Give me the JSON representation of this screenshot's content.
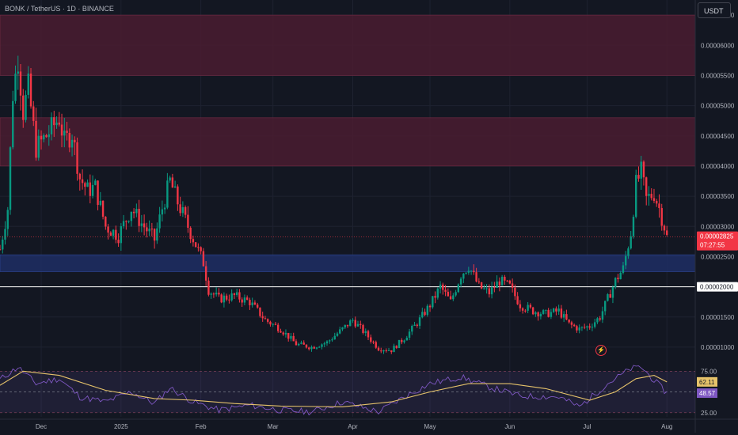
{
  "header": {
    "symbol": "BONK / TetherUS · 1D · BINANCE",
    "currency": "USDT"
  },
  "price_axis": {
    "ticks": [
      "0.00006500",
      "0.00006000",
      "0.00005500",
      "0.00005000",
      "0.00004500",
      "0.00004000",
      "0.00003500",
      "0.00003000",
      "0.00002500",
      "0.00002000",
      "0.00001500",
      "0.00001000"
    ],
    "current_price": "0.00002825",
    "countdown": "07:27:55",
    "line_price": "0.00002000"
  },
  "rsi_axis": {
    "ticks": [
      "75.00",
      "25.00"
    ],
    "ma_value": "62.11",
    "rsi_value": "48.57"
  },
  "time_axis": {
    "labels": [
      "Dec",
      "2025",
      "Feb",
      "Mar",
      "Apr",
      "May",
      "Jun",
      "Jul",
      "Aug"
    ]
  },
  "colors": {
    "background": "#131722",
    "up": "#089981",
    "down": "#f23645",
    "zone_red": "#4a1c30",
    "zone_blue": "#1e2e64",
    "rsi_line": "#7e57c2",
    "rsi_ma": "#e6c36a"
  },
  "icons": {
    "alert": "flash-icon"
  },
  "chart_data": {
    "type": "candlestick",
    "symbol": "BONK / TetherUS",
    "interval": "1D",
    "exchange": "BINANCE",
    "y_range": [
      7.5e-06,
      6.75e-05
    ],
    "x_range": [
      "2024-11-15",
      "2025-08-12"
    ],
    "zones": [
      {
        "from": 5.5e-05,
        "to": 6.5e-05,
        "color": "red"
      },
      {
        "from": 4e-05,
        "to": 4.8e-05,
        "color": "red"
      },
      {
        "from": 2.25e-05,
        "to": 2.53e-05,
        "color": "blue"
      }
    ],
    "horizontal_lines": [
      2e-05
    ],
    "close_path": [
      [
        "2024-11-15",
        2.62e-05
      ],
      [
        "2024-11-18",
        3.3e-05
      ],
      [
        "2024-11-20",
        5.2e-05
      ],
      [
        "2024-11-22",
        5.8e-05
      ],
      [
        "2024-11-24",
        4.9e-05
      ],
      [
        "2024-11-26",
        5.3e-05
      ],
      [
        "2024-11-29",
        4.3e-05
      ],
      [
        "2024-12-03",
        4.5e-05
      ],
      [
        "2024-12-08",
        4.8e-05
      ],
      [
        "2024-12-10",
        4.4e-05
      ],
      [
        "2024-12-13",
        4.55e-05
      ],
      [
        "2024-12-16",
        3.8e-05
      ],
      [
        "2024-12-19",
        3.6e-05
      ],
      [
        "2024-12-22",
        3.65e-05
      ],
      [
        "2024-12-26",
        3e-05
      ],
      [
        "2024-12-31",
        2.85e-05
      ],
      [
        "2025-01-05",
        3.3e-05
      ],
      [
        "2025-01-09",
        3.05e-05
      ],
      [
        "2025-01-14",
        2.78e-05
      ],
      [
        "2025-01-17",
        3.3e-05
      ],
      [
        "2025-01-20",
        3.75e-05
      ],
      [
        "2025-01-23",
        3.4e-05
      ],
      [
        "2025-01-26",
        3.1e-05
      ],
      [
        "2025-01-29",
        2.8e-05
      ],
      [
        "2025-02-02",
        2.4e-05
      ],
      [
        "2025-02-04",
        1.95e-05
      ],
      [
        "2025-02-08",
        1.8e-05
      ],
      [
        "2025-02-14",
        1.85e-05
      ],
      [
        "2025-02-20",
        1.75e-05
      ],
      [
        "2025-02-26",
        1.45e-05
      ],
      [
        "2025-03-04",
        1.3e-05
      ],
      [
        "2025-03-10",
        1.05e-05
      ],
      [
        "2025-03-16",
        1e-05
      ],
      [
        "2025-03-22",
        1.08e-05
      ],
      [
        "2025-03-28",
        1.3e-05
      ],
      [
        "2025-04-01",
        1.45e-05
      ],
      [
        "2025-04-06",
        1.22e-05
      ],
      [
        "2025-04-11",
        9.8e-06
      ],
      [
        "2025-04-16",
        9.5e-06
      ],
      [
        "2025-04-21",
        1.15e-05
      ],
      [
        "2025-04-26",
        1.4e-05
      ],
      [
        "2025-05-01",
        1.7e-05
      ],
      [
        "2025-05-05",
        2e-05
      ],
      [
        "2025-05-09",
        1.75e-05
      ],
      [
        "2025-05-13",
        2.2e-05
      ],
      [
        "2025-05-16",
        2.35e-05
      ],
      [
        "2025-05-20",
        2e-05
      ],
      [
        "2025-05-24",
        1.9e-05
      ],
      [
        "2025-05-28",
        2.1e-05
      ],
      [
        "2025-06-01",
        2e-05
      ],
      [
        "2025-06-05",
        1.7e-05
      ],
      [
        "2025-06-10",
        1.6e-05
      ],
      [
        "2025-06-15",
        1.55e-05
      ],
      [
        "2025-06-20",
        1.6e-05
      ],
      [
        "2025-06-24",
        1.38e-05
      ],
      [
        "2025-06-28",
        1.3e-05
      ],
      [
        "2025-07-02",
        1.35e-05
      ],
      [
        "2025-07-06",
        1.5e-05
      ],
      [
        "2025-07-09",
        1.8e-05
      ],
      [
        "2025-07-12",
        2.1e-05
      ],
      [
        "2025-07-15",
        2.3e-05
      ],
      [
        "2025-07-18",
        2.9e-05
      ],
      [
        "2025-07-20",
        3.7e-05
      ],
      [
        "2025-07-22",
        3.9e-05
      ],
      [
        "2025-07-24",
        3.45e-05
      ],
      [
        "2025-07-27",
        3.55e-05
      ],
      [
        "2025-07-29",
        3.3e-05
      ],
      [
        "2025-07-31",
        3e-05
      ],
      [
        "2025-08-01",
        2.82e-05
      ]
    ],
    "rsi": {
      "levels": [
        75,
        50,
        25
      ],
      "y_range": [
        20,
        82
      ],
      "ma_path": [
        [
          "2024-11-15",
          58
        ],
        [
          "2024-11-24",
          75
        ],
        [
          "2024-12-08",
          70
        ],
        [
          "2024-12-26",
          52
        ],
        [
          "2025-01-14",
          42
        ],
        [
          "2025-01-29",
          40
        ],
        [
          "2025-02-14",
          36
        ],
        [
          "2025-03-04",
          33
        ],
        [
          "2025-03-28",
          32
        ],
        [
          "2025-04-16",
          38
        ],
        [
          "2025-05-01",
          50
        ],
        [
          "2025-05-16",
          60
        ],
        [
          "2025-06-01",
          60
        ],
        [
          "2025-06-15",
          54
        ],
        [
          "2025-07-02",
          40
        ],
        [
          "2025-07-12",
          50
        ],
        [
          "2025-07-20",
          66
        ],
        [
          "2025-07-27",
          70
        ],
        [
          "2025-08-01",
          62.11
        ]
      ],
      "rsi_path": [
        [
          "2024-11-15",
          65
        ],
        [
          "2024-11-22",
          80
        ],
        [
          "2024-11-29",
          60
        ],
        [
          "2024-12-08",
          66
        ],
        [
          "2024-12-16",
          44
        ],
        [
          "2024-12-26",
          38
        ],
        [
          "2025-01-05",
          50
        ],
        [
          "2025-01-14",
          36
        ],
        [
          "2025-01-20",
          55
        ],
        [
          "2025-01-29",
          38
        ],
        [
          "2025-02-08",
          28
        ],
        [
          "2025-02-20",
          34
        ],
        [
          "2025-03-04",
          28
        ],
        [
          "2025-03-16",
          26
        ],
        [
          "2025-03-28",
          38
        ],
        [
          "2025-04-11",
          26
        ],
        [
          "2025-04-21",
          44
        ],
        [
          "2025-05-01",
          60
        ],
        [
          "2025-05-13",
          68
        ],
        [
          "2025-05-24",
          56
        ],
        [
          "2025-06-05",
          45
        ],
        [
          "2025-06-20",
          44
        ],
        [
          "2025-06-28",
          32
        ],
        [
          "2025-07-09",
          60
        ],
        [
          "2025-07-18",
          78
        ],
        [
          "2025-07-22",
          80
        ],
        [
          "2025-07-27",
          64
        ],
        [
          "2025-08-01",
          48.57
        ]
      ]
    }
  }
}
